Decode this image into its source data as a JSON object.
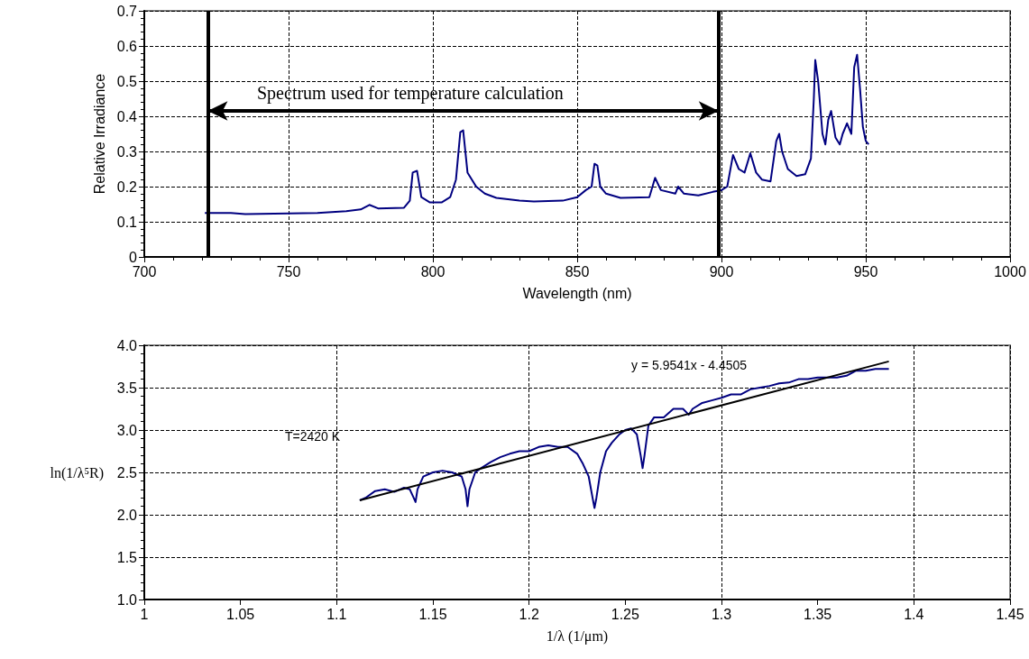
{
  "chart_data": [
    {
      "type": "line",
      "xlabel": "Wavelength (nm)",
      "ylabel": "Relative Irradiance",
      "x": [
        721,
        730,
        735,
        760,
        770,
        775,
        778,
        781,
        790,
        792,
        793,
        794.5,
        796,
        799,
        803,
        806,
        808,
        809.5,
        810.5,
        812,
        815,
        818,
        822,
        830,
        835,
        845,
        850,
        853,
        855,
        856,
        857,
        858,
        860,
        865,
        875,
        877,
        879,
        884,
        885,
        887,
        892,
        897,
        900,
        902,
        904,
        906,
        908,
        910,
        912,
        914,
        917,
        919,
        920,
        921,
        923,
        926,
        929,
        931,
        932,
        932.5,
        933.5,
        935,
        936,
        937,
        938,
        939.5,
        941,
        942,
        943.5,
        945,
        946,
        947,
        948,
        949,
        950,
        951
      ],
      "series": [
        {
          "color": "#000080",
          "values": [
            0.125,
            0.125,
            0.122,
            0.125,
            0.13,
            0.135,
            0.148,
            0.138,
            0.14,
            0.16,
            0.24,
            0.245,
            0.17,
            0.155,
            0.155,
            0.17,
            0.22,
            0.355,
            0.36,
            0.24,
            0.2,
            0.18,
            0.168,
            0.16,
            0.158,
            0.16,
            0.17,
            0.19,
            0.2,
            0.265,
            0.26,
            0.2,
            0.18,
            0.168,
            0.17,
            0.225,
            0.19,
            0.18,
            0.2,
            0.18,
            0.175,
            0.185,
            0.19,
            0.2,
            0.29,
            0.25,
            0.24,
            0.295,
            0.24,
            0.22,
            0.215,
            0.33,
            0.35,
            0.3,
            0.25,
            0.23,
            0.235,
            0.28,
            0.45,
            0.56,
            0.5,
            0.35,
            0.32,
            0.39,
            0.415,
            0.34,
            0.32,
            0.35,
            0.38,
            0.35,
            0.54,
            0.575,
            0.48,
            0.37,
            0.33,
            0.32
          ]
        }
      ],
      "xlim": [
        700,
        1000
      ],
      "xticks": [
        700,
        750,
        800,
        850,
        900,
        950,
        1000
      ],
      "ylim": [
        0,
        0.7
      ],
      "yticks": [
        0,
        0.1,
        0.2,
        0.3,
        0.4,
        0.5,
        0.6,
        0.7
      ],
      "ref_lines": [
        {
          "axis": "x",
          "value": 722,
          "color": "#000000"
        },
        {
          "axis": "x",
          "value": 899,
          "color": "#000000"
        }
      ],
      "annotations": [
        "Spectrum used for temperature calculation"
      ],
      "grid": true,
      "marker": "none",
      "line_style": "solid"
    },
    {
      "type": "line",
      "xlabel": "1/λ (1/μm)",
      "ylabel": "ln(1/λ⁵R)",
      "x": [
        1.112,
        1.115,
        1.12,
        1.125,
        1.13,
        1.135,
        1.138,
        1.14,
        1.141,
        1.142,
        1.145,
        1.15,
        1.155,
        1.16,
        1.165,
        1.167,
        1.168,
        1.169,
        1.172,
        1.175,
        1.18,
        1.185,
        1.19,
        1.195,
        1.2,
        1.205,
        1.21,
        1.215,
        1.22,
        1.225,
        1.228,
        1.231,
        1.233,
        1.234,
        1.235,
        1.237,
        1.24,
        1.243,
        1.247,
        1.25,
        1.253,
        1.256,
        1.258,
        1.259,
        1.26,
        1.262,
        1.265,
        1.27,
        1.275,
        1.28,
        1.283,
        1.285,
        1.29,
        1.295,
        1.3,
        1.305,
        1.31,
        1.315,
        1.32,
        1.325,
        1.33,
        1.335,
        1.34,
        1.345,
        1.35,
        1.355,
        1.36,
        1.365,
        1.37,
        1.375,
        1.38,
        1.387
      ],
      "series": [
        {
          "color": "#000080",
          "values": [
            2.17,
            2.2,
            2.28,
            2.3,
            2.27,
            2.32,
            2.3,
            2.2,
            2.15,
            2.3,
            2.45,
            2.5,
            2.52,
            2.5,
            2.45,
            2.3,
            2.1,
            2.3,
            2.5,
            2.55,
            2.62,
            2.68,
            2.72,
            2.75,
            2.75,
            2.8,
            2.82,
            2.8,
            2.8,
            2.72,
            2.6,
            2.45,
            2.2,
            2.08,
            2.2,
            2.5,
            2.75,
            2.85,
            2.95,
            3.0,
            3.02,
            2.95,
            2.7,
            2.55,
            2.7,
            3.05,
            3.15,
            3.15,
            3.25,
            3.25,
            3.18,
            3.25,
            3.32,
            3.35,
            3.38,
            3.42,
            3.42,
            3.48,
            3.5,
            3.52,
            3.55,
            3.56,
            3.6,
            3.6,
            3.62,
            3.62,
            3.62,
            3.64,
            3.7,
            3.7,
            3.72,
            3.72
          ]
        },
        {
          "type": "line",
          "color": "#000000",
          "x": [
            1.112,
            1.387
          ],
          "values": [
            2.17,
            3.81
          ]
        }
      ],
      "xlim": [
        1,
        1.45
      ],
      "xticks": [
        1,
        1.05,
        1.1,
        1.15,
        1.2,
        1.25,
        1.3,
        1.35,
        1.4,
        1.45
      ],
      "ylim": [
        1,
        4
      ],
      "yticks": [
        {
          "value": 1,
          "label": "1.0"
        },
        1.5,
        {
          "value": 2,
          "label": "2.0"
        },
        2.5,
        {
          "value": 3,
          "label": "3.0"
        },
        3.5,
        {
          "value": 4,
          "label": "4.0"
        }
      ],
      "annotations": [
        "y = 5.9541x - 4.4505",
        "T=2420 K"
      ],
      "grid": true,
      "marker": "none",
      "line_style": "solid"
    }
  ]
}
